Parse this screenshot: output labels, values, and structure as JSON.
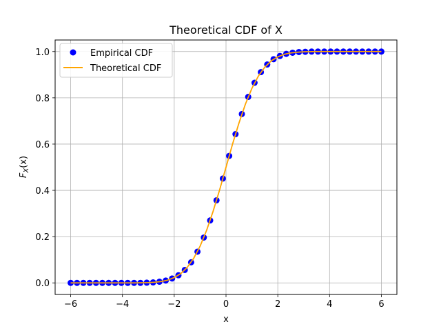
{
  "chart_data": {
    "type": "scatter",
    "title": "Theoretical CDF of X",
    "xlabel": "x",
    "ylabel_main": "F",
    "ylabel_sub": "X",
    "ylabel_tail": "(x)",
    "xlim": [
      -6.6,
      6.6
    ],
    "ylim": [
      -0.05,
      1.05
    ],
    "xticks": [
      -6,
      -4,
      -2,
      0,
      2,
      4,
      6
    ],
    "xtick_labels": [
      "−6",
      "−4",
      "−2",
      "0",
      "2",
      "4",
      "6"
    ],
    "yticks": [
      0.0,
      0.2,
      0.4,
      0.6,
      0.8,
      1.0
    ],
    "ytick_labels": [
      "0.0",
      "0.2",
      "0.4",
      "0.6",
      "0.8",
      "1.0"
    ],
    "grid": true,
    "legend_position": "top-left",
    "series": [
      {
        "name": "Empirical CDF",
        "kind": "scatter",
        "color": "#0000ff",
        "x": [
          -6.0,
          -5.755,
          -5.51,
          -5.265,
          -5.02,
          -4.776,
          -4.531,
          -4.286,
          -4.041,
          -3.796,
          -3.551,
          -3.306,
          -3.061,
          -2.816,
          -2.571,
          -2.327,
          -2.082,
          -1.837,
          -1.592,
          -1.347,
          -1.102,
          -0.857,
          -0.612,
          -0.367,
          -0.122,
          0.122,
          0.367,
          0.612,
          0.857,
          1.102,
          1.347,
          1.592,
          1.837,
          2.082,
          2.327,
          2.571,
          2.816,
          3.061,
          3.306,
          3.551,
          3.796,
          4.041,
          4.286,
          4.531,
          4.776,
          5.02,
          5.265,
          5.51,
          5.755,
          6.0
        ],
        "y": [
          0.0,
          0.0,
          0.0,
          0.0,
          0.0,
          0.0,
          0.0,
          0.0,
          0.0,
          0.0,
          0.0,
          0.0,
          0.001,
          0.002,
          0.005,
          0.01,
          0.019,
          0.033,
          0.056,
          0.089,
          0.135,
          0.196,
          0.27,
          0.357,
          0.451,
          0.549,
          0.643,
          0.73,
          0.804,
          0.865,
          0.911,
          0.944,
          0.967,
          0.981,
          0.99,
          0.995,
          0.998,
          0.999,
          1.0,
          1.0,
          1.0,
          1.0,
          1.0,
          1.0,
          1.0,
          1.0,
          1.0,
          1.0,
          1.0,
          1.0
        ]
      },
      {
        "name": "Theoretical CDF",
        "kind": "line",
        "color": "#ffa500",
        "x": [
          -6.0,
          -5.0,
          -4.0,
          -3.5,
          -3.0,
          -2.75,
          -2.5,
          -2.25,
          -2.0,
          -1.75,
          -1.5,
          -1.25,
          -1.0,
          -0.75,
          -0.5,
          -0.25,
          0.0,
          0.25,
          0.5,
          0.75,
          1.0,
          1.25,
          1.5,
          1.75,
          2.0,
          2.25,
          2.5,
          2.75,
          3.0,
          3.5,
          4.0,
          5.0,
          6.0
        ],
        "y": [
          0.0,
          0.0,
          0.0,
          0.0,
          0.001,
          0.003,
          0.006,
          0.012,
          0.023,
          0.04,
          0.067,
          0.106,
          0.159,
          0.227,
          0.309,
          0.401,
          0.5,
          0.599,
          0.691,
          0.773,
          0.841,
          0.894,
          0.933,
          0.96,
          0.977,
          0.988,
          0.994,
          0.997,
          0.999,
          1.0,
          1.0,
          1.0,
          1.0
        ]
      }
    ]
  }
}
